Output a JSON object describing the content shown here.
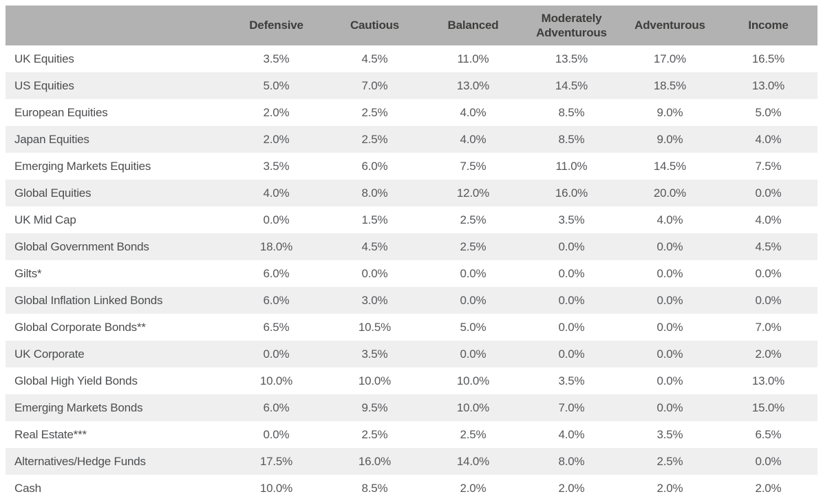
{
  "table": {
    "corner_label": "",
    "columns": [
      "Defensive",
      "Cautious",
      "Balanced",
      "Moderately Adventurous",
      "Adventurous",
      "Income"
    ],
    "rows": [
      {
        "label": "UK Equities",
        "values": [
          "3.5%",
          "4.5%",
          "11.0%",
          "13.5%",
          "17.0%",
          "16.5%"
        ]
      },
      {
        "label": "US Equities",
        "values": [
          "5.0%",
          "7.0%",
          "13.0%",
          "14.5%",
          "18.5%",
          "13.0%"
        ]
      },
      {
        "label": "European Equities",
        "values": [
          "2.0%",
          "2.5%",
          "4.0%",
          "8.5%",
          "9.0%",
          "5.0%"
        ]
      },
      {
        "label": "Japan Equities",
        "values": [
          "2.0%",
          "2.5%",
          "4.0%",
          "8.5%",
          "9.0%",
          "4.0%"
        ]
      },
      {
        "label": "Emerging Markets Equities",
        "values": [
          "3.5%",
          "6.0%",
          "7.5%",
          "11.0%",
          "14.5%",
          "7.5%"
        ]
      },
      {
        "label": "Global Equities",
        "values": [
          "4.0%",
          "8.0%",
          "12.0%",
          "16.0%",
          "20.0%",
          "0.0%"
        ]
      },
      {
        "label": "UK Mid Cap",
        "values": [
          "0.0%",
          "1.5%",
          "2.5%",
          "3.5%",
          "4.0%",
          "4.0%"
        ]
      },
      {
        "label": "Global Government Bonds",
        "values": [
          "18.0%",
          "4.5%",
          "2.5%",
          "0.0%",
          "0.0%",
          "4.5%"
        ]
      },
      {
        "label": "Gilts*",
        "values": [
          "6.0%",
          "0.0%",
          "0.0%",
          "0.0%",
          "0.0%",
          "0.0%"
        ]
      },
      {
        "label": "Global Inflation Linked Bonds",
        "values": [
          "6.0%",
          "3.0%",
          "0.0%",
          "0.0%",
          "0.0%",
          "0.0%"
        ]
      },
      {
        "label": "Global Corporate Bonds**",
        "values": [
          "6.5%",
          "10.5%",
          "5.0%",
          "0.0%",
          "0.0%",
          "7.0%"
        ]
      },
      {
        "label": "UK Corporate",
        "values": [
          "0.0%",
          "3.5%",
          "0.0%",
          "0.0%",
          "0.0%",
          "2.0%"
        ]
      },
      {
        "label": "Global High Yield Bonds",
        "values": [
          "10.0%",
          "10.0%",
          "10.0%",
          "3.5%",
          "0.0%",
          "13.0%"
        ]
      },
      {
        "label": "Emerging Markets Bonds",
        "values": [
          "6.0%",
          "9.5%",
          "10.0%",
          "7.0%",
          "0.0%",
          "15.0%"
        ]
      },
      {
        "label": "Real Estate***",
        "values": [
          "0.0%",
          "2.5%",
          "2.5%",
          "4.0%",
          "3.5%",
          "6.5%"
        ]
      },
      {
        "label": "Alternatives/Hedge Funds",
        "values": [
          "17.5%",
          "16.0%",
          "14.0%",
          "8.0%",
          "2.5%",
          "0.0%"
        ]
      },
      {
        "label": "Cash",
        "values": [
          "10.0%",
          "8.5%",
          "2.0%",
          "2.0%",
          "2.0%",
          "2.0%"
        ]
      }
    ]
  },
  "colors": {
    "header_bg": "#b2b2b2",
    "header_text": "#3d3d3c",
    "row_stripe": "#efefef",
    "row_text": "#4c4d4f",
    "value_text": "#56575a",
    "background": "#ffffff"
  }
}
